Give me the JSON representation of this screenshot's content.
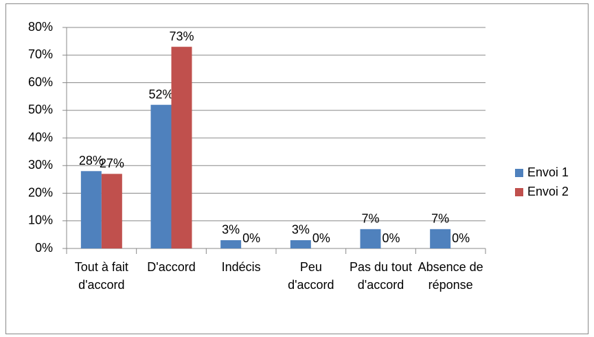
{
  "chart_data": {
    "type": "bar",
    "categories": [
      "Tout à fait d'accord",
      "D'accord",
      "Indécis",
      "Peu d'accord",
      "Pas du tout d'accord",
      "Absence de réponse"
    ],
    "series": [
      {
        "name": "Envoi 1",
        "color": "#4f81bd",
        "values": [
          28,
          52,
          3,
          3,
          7,
          7
        ],
        "value_labels": [
          "28%",
          "52%",
          "3%",
          "3%",
          "7%",
          "7%"
        ]
      },
      {
        "name": "Envoi 2",
        "color": "#c0504d",
        "values": [
          27,
          73,
          0,
          0,
          0,
          0
        ],
        "value_labels": [
          "27%",
          "73%",
          "0%",
          "0%",
          "0%",
          "0%"
        ]
      }
    ],
    "ylim": [
      0,
      80
    ],
    "yticks": [
      {
        "value": 0,
        "label": "0%"
      },
      {
        "value": 10,
        "label": "10%"
      },
      {
        "value": 20,
        "label": "20%"
      },
      {
        "value": 30,
        "label": "30%"
      },
      {
        "value": 40,
        "label": "40%"
      },
      {
        "value": 50,
        "label": "50%"
      },
      {
        "value": 60,
        "label": "60%"
      },
      {
        "value": 70,
        "label": "70%"
      },
      {
        "value": 80,
        "label": "80%"
      }
    ],
    "grid": true,
    "legend": "right"
  }
}
